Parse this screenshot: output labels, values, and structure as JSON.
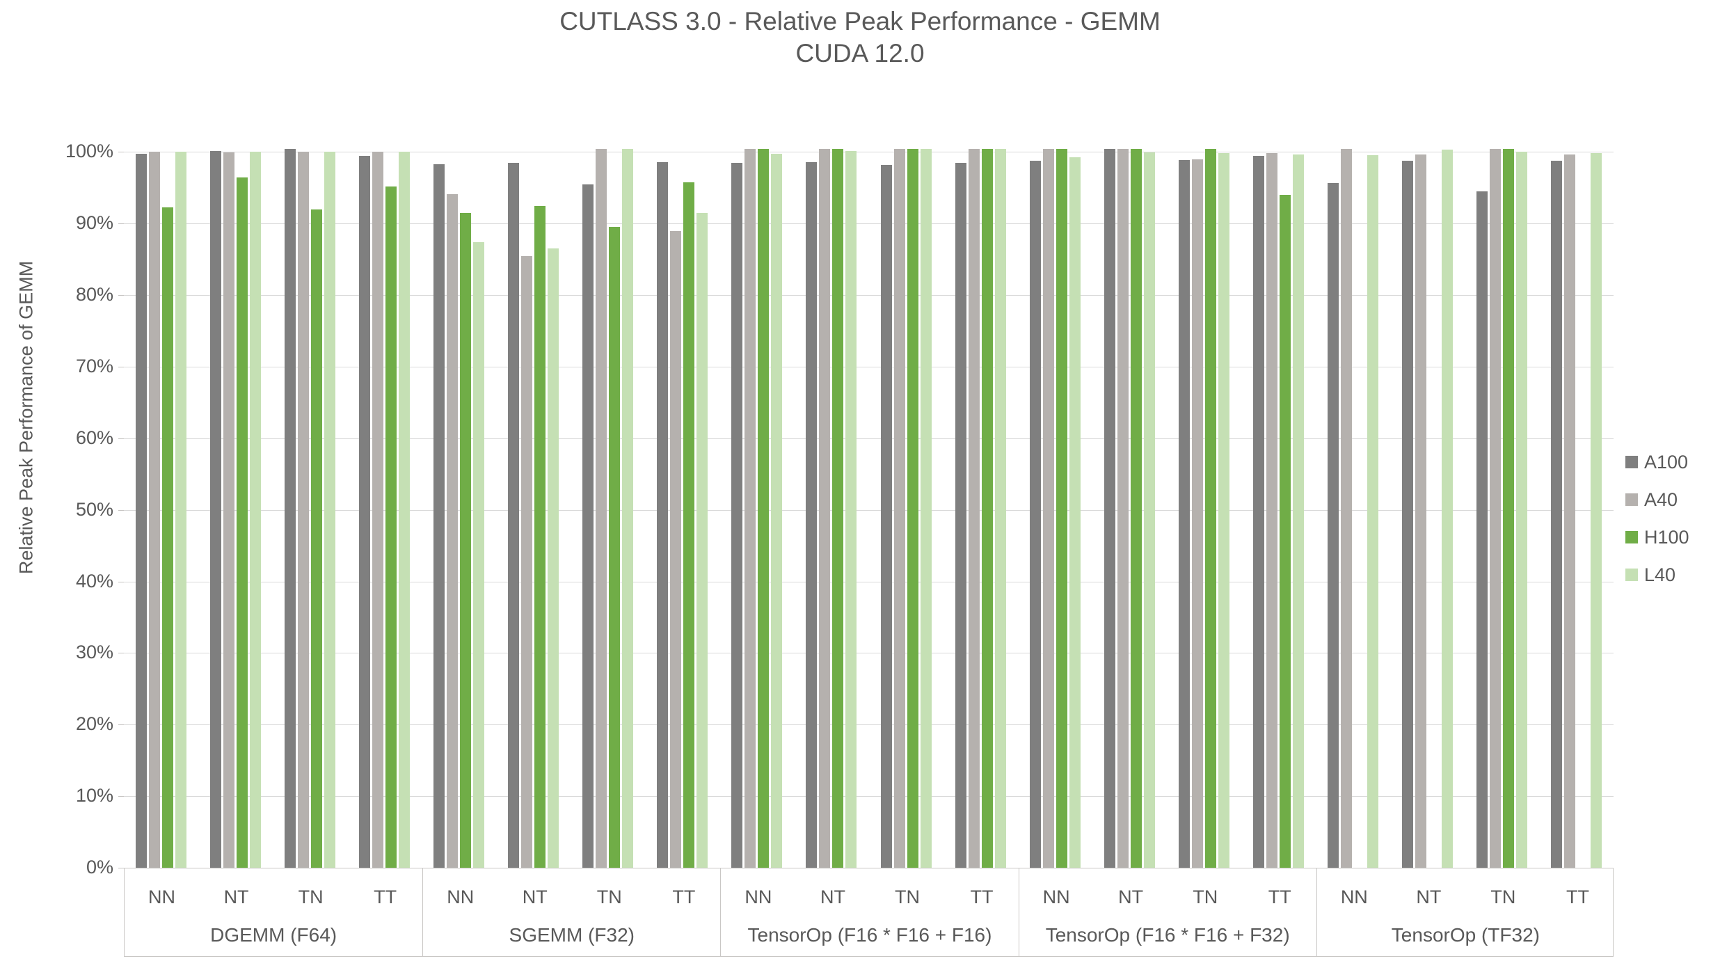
{
  "title": {
    "line1": "CUTLASS 3.0 - Relative Peak Performance - GEMM",
    "line2": "CUDA 12.0"
  },
  "y_axis": {
    "title": "Relative Peak Performance of GEMM",
    "tick_labels": [
      "0%",
      "10%",
      "20%",
      "30%",
      "40%",
      "50%",
      "60%",
      "70%",
      "80%",
      "90%",
      "100%"
    ]
  },
  "legend": {
    "position": "right",
    "items": [
      {
        "label": "A100",
        "color": "#7f7f7f"
      },
      {
        "label": "A40",
        "color": "#b5b1ae"
      },
      {
        "label": "H100",
        "color": "#70ad47"
      },
      {
        "label": "L40",
        "color": "#c5e0b4"
      }
    ]
  },
  "colors": {
    "gridline": "#d9d9d9",
    "axis_border": "#c9c7c5",
    "text": "#595959",
    "background": "#ffffff"
  },
  "chart_data": {
    "type": "bar",
    "title": "CUTLASS 3.0 - Relative Peak Performance - GEMM",
    "subtitle": "CUDA 12.0",
    "xlabel": "",
    "ylabel": "Relative Peak Performance of GEMM",
    "unit": "percent",
    "ylim": [
      0,
      101
    ],
    "y_ticks": [
      0,
      10,
      20,
      30,
      40,
      50,
      60,
      70,
      80,
      90,
      100
    ],
    "grid": true,
    "legend_position": "right",
    "groups": [
      "DGEMM (F64)",
      "SGEMM (F32)",
      "TensorOp (F16 * F16 + F16)",
      "TensorOp (F16 * F16 + F32)",
      "TensorOp (TF32)"
    ],
    "categories": [
      "NN",
      "NT",
      "TN",
      "TT"
    ],
    "series": [
      {
        "name": "A100",
        "color": "#7f7f7f",
        "values_by_group": [
          [
            99.7,
            100.1,
            100.4,
            99.4
          ],
          [
            98.3,
            98.5,
            95.5,
            98.6
          ],
          [
            98.5,
            98.6,
            98.2,
            98.5
          ],
          [
            98.8,
            100.4,
            98.9,
            99.4
          ],
          [
            95.7,
            98.8,
            94.5,
            98.8
          ]
        ]
      },
      {
        "name": "A40",
        "color": "#b5b1ae",
        "values_by_group": [
          [
            100.0,
            99.9,
            100.0,
            100.0
          ],
          [
            94.1,
            85.4,
            100.4,
            88.9
          ],
          [
            100.4,
            100.4,
            100.4,
            100.4
          ],
          [
            100.4,
            100.4,
            99.0,
            99.8
          ],
          [
            100.4,
            99.6,
            100.4,
            99.6
          ]
        ]
      },
      {
        "name": "H100",
        "color": "#70ad47",
        "values_by_group": [
          [
            92.3,
            96.4,
            92.0,
            95.2
          ],
          [
            91.5,
            92.4,
            89.5,
            95.8
          ],
          [
            100.4,
            100.4,
            100.4,
            100.4
          ],
          [
            100.4,
            100.4,
            100.4,
            94.0
          ],
          [
            null,
            null,
            100.4,
            null
          ]
        ]
      },
      {
        "name": "L40",
        "color": "#c5e0b4",
        "values_by_group": [
          [
            100.0,
            100.0,
            100.0,
            100.0
          ],
          [
            87.4,
            86.5,
            100.4,
            91.5
          ],
          [
            99.7,
            100.1,
            100.4,
            100.4
          ],
          [
            99.3,
            99.9,
            99.8,
            99.6
          ],
          [
            99.5,
            100.3,
            100.0,
            99.8
          ]
        ]
      }
    ]
  }
}
